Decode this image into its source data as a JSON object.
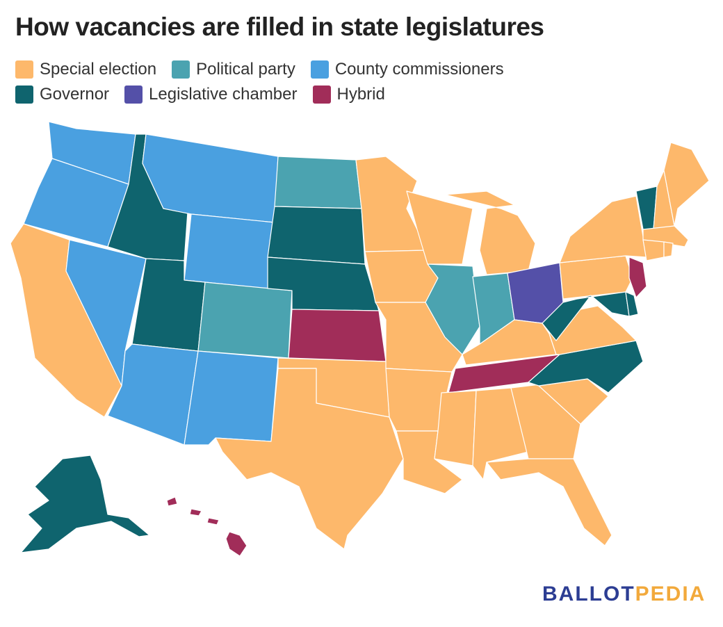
{
  "title": "How vacancies are filled in state legislatures",
  "legend": [
    {
      "label": "Special election",
      "color": "#fdb86b"
    },
    {
      "label": "Political party",
      "color": "#4ba3b0"
    },
    {
      "label": "County commissioners",
      "color": "#4aa0e0"
    },
    {
      "label": "Governor",
      "color": "#0f646e"
    },
    {
      "label": "Legislative chamber",
      "color": "#5450a8"
    },
    {
      "label": "Hybrid",
      "color": "#a12d59"
    }
  ],
  "states": {
    "WA": "County commissioners",
    "OR": "County commissioners",
    "NV": "County commissioners",
    "AZ": "County commissioners",
    "NM": "County commissioners",
    "MT": "County commissioners",
    "WY": "County commissioners",
    "ID": "Governor",
    "UT": "Governor",
    "SD": "Governor",
    "NE": "Governor",
    "NC": "Governor",
    "WV": "Governor",
    "MD": "Governor",
    "DE": "Governor",
    "VT": "Governor",
    "AK": "Governor",
    "CO": "Political party",
    "ND": "Political party",
    "IL": "Political party",
    "IN": "Political party",
    "OH": "Legislative chamber",
    "KS": "Hybrid",
    "TN": "Hybrid",
    "NJ": "Hybrid",
    "HI": "Hybrid",
    "CA": "Special election",
    "TX": "Special election",
    "OK": "Special election",
    "MN": "Special election",
    "IA": "Special election",
    "MO": "Special election",
    "AR": "Special election",
    "LA": "Special election",
    "WI": "Special election",
    "MI": "Special election",
    "KY": "Special election",
    "MS": "Special election",
    "AL": "Special election",
    "GA": "Special election",
    "FL": "Special election",
    "SC": "Special election",
    "VA": "Special election",
    "PA": "Special election",
    "NY": "Special election",
    "ME": "Special election",
    "NH": "Special election",
    "MA": "Special election",
    "CT": "Special election",
    "RI": "Special election"
  },
  "logo": {
    "part1": "BALLOT",
    "part2": "PEDIA"
  }
}
